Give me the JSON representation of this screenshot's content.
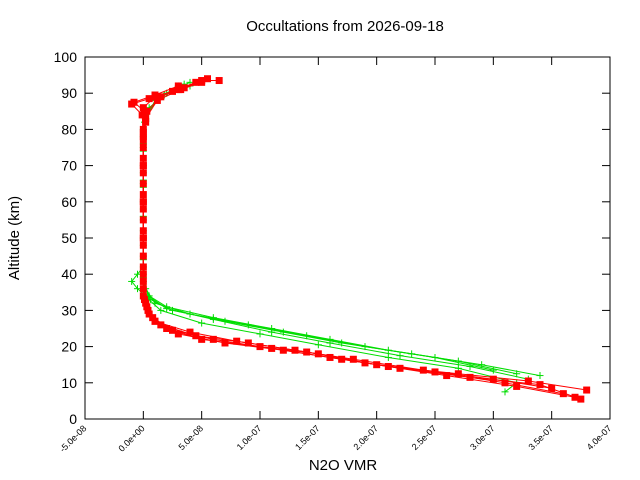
{
  "chart_data": {
    "type": "line",
    "title": "Occultations from 2026-09-18",
    "xlabel": "N2O VMR",
    "ylabel": "Altitude (km)",
    "xlim": [
      -5e-08,
      4e-07
    ],
    "ylim": [
      0,
      100
    ],
    "x_ticks": [
      -5e-08,
      0,
      5e-08,
      1e-07,
      1.5e-07,
      2e-07,
      2.5e-07,
      3e-07,
      3.5e-07,
      4e-07
    ],
    "x_tick_labels": [
      "-5.0e-08",
      "0.0e+00",
      "5.0e-08",
      "1.0e-07",
      "1.5e-07",
      "2.0e-07",
      "2.5e-07",
      "3.0e-07",
      "3.5e-07",
      "4.0e-07"
    ],
    "y_ticks": [
      0,
      10,
      20,
      30,
      40,
      50,
      60,
      70,
      80,
      90,
      100
    ],
    "y_tick_labels": [
      "0",
      "10",
      "20",
      "30",
      "40",
      "50",
      "60",
      "70",
      "80",
      "90",
      "100"
    ],
    "grid": false,
    "legend": "none",
    "series": [
      {
        "color": "#00dd00",
        "marker": "plus",
        "profiles": [
          [
            [
              3.2e-07,
              12.5
            ],
            [
              2.7e-07,
              16
            ],
            [
              2.1e-07,
              19
            ],
            [
              1.6e-07,
              22
            ],
            [
              1.1e-07,
              25
            ],
            [
              6e-08,
              28
            ],
            [
              2e-08,
              31
            ],
            [
              5e-09,
              34
            ],
            [
              0,
              38
            ],
            [
              0,
              45
            ],
            [
              0,
              55
            ],
            [
              0,
              65
            ],
            [
              0,
              75
            ],
            [
              1e-09,
              82
            ],
            [
              1e-08,
              88
            ],
            [
              3e-08,
              92
            ]
          ],
          [
            [
              3.4e-07,
              12
            ],
            [
              2.9e-07,
              15
            ],
            [
              2.3e-07,
              18
            ],
            [
              1.7e-07,
              21
            ],
            [
              1.2e-07,
              24
            ],
            [
              7e-08,
              27
            ],
            [
              2.5e-08,
              30
            ],
            [
              6e-09,
              33
            ],
            [
              -5e-09,
              36
            ],
            [
              -1e-08,
              38
            ],
            [
              -5e-09,
              40
            ],
            [
              0,
              42
            ],
            [
              0,
              50
            ],
            [
              0,
              60
            ],
            [
              0,
              70
            ],
            [
              0,
              80
            ],
            [
              5e-09,
              86
            ],
            [
              2e-08,
              90
            ],
            [
              4e-08,
              93
            ]
          ],
          [
            [
              3e-07,
              13.5
            ],
            [
              2.5e-07,
              17
            ],
            [
              1.9e-07,
              20
            ],
            [
              1.4e-07,
              23
            ],
            [
              9e-08,
              26
            ],
            [
              4e-08,
              29
            ],
            [
              1e-08,
              32
            ],
            [
              2e-09,
              36
            ],
            [
              0,
              44
            ],
            [
              0,
              56
            ],
            [
              0,
              66
            ],
            [
              0,
              76
            ],
            [
              2e-09,
              84
            ],
            [
              1.5e-08,
              89
            ],
            [
              3.5e-08,
              92.5
            ]
          ],
          [
            [
              3.3e-07,
              11
            ],
            [
              2.8e-07,
              14.5
            ],
            [
              2.2e-07,
              17.5
            ],
            [
              1.6e-07,
              21
            ],
            [
              1.1e-07,
              24
            ],
            [
              6e-08,
              27.5
            ],
            [
              2e-08,
              30.5
            ],
            [
              4e-09,
              34
            ],
            [
              0,
              40
            ],
            [
              0,
              48
            ],
            [
              0,
              58
            ],
            [
              0,
              68
            ],
            [
              0,
              78
            ],
            [
              3e-09,
              85
            ],
            [
              1.8e-08,
              89.5
            ],
            [
              4e-08,
              92
            ]
          ],
          [
            [
              3.1e-07,
              7.5
            ],
            [
              3.2e-07,
              10
            ],
            [
              2.7e-07,
              14
            ],
            [
              2.1e-07,
              17
            ],
            [
              1.5e-07,
              20.5
            ],
            [
              1e-07,
              23.5
            ],
            [
              5e-08,
              26.5
            ],
            [
              1.5e-08,
              30
            ],
            [
              3e-09,
              33.5
            ],
            [
              0,
              39
            ],
            [
              0,
              52
            ],
            [
              0,
              64
            ],
            [
              0,
              74
            ],
            [
              2e-09,
              83
            ],
            [
              1.2e-08,
              88.5
            ],
            [
              3e-08,
              91.5
            ]
          ]
        ]
      },
      {
        "color": "#ff0000",
        "marker": "square",
        "profiles": [
          [
            [
              3.7e-07,
              6
            ],
            [
              3.2e-07,
              9
            ],
            [
              2.6e-07,
              12
            ],
            [
              2e-07,
              15
            ],
            [
              1.5e-07,
              18
            ],
            [
              1e-07,
              20
            ],
            [
              5e-08,
              22
            ],
            [
              2e-08,
              25
            ],
            [
              5e-09,
              29
            ],
            [
              0,
              34
            ],
            [
              0,
              45
            ],
            [
              0,
              55
            ],
            [
              0,
              65
            ],
            [
              0,
              75
            ],
            [
              2e-09,
              82
            ],
            [
              0,
              86
            ],
            [
              1e-08,
              89
            ],
            [
              3e-08,
              91
            ],
            [
              5e-08,
              93.5
            ],
            [
              6.5e-08,
              93.5
            ]
          ],
          [
            [
              3.6e-07,
              7
            ],
            [
              3.1e-07,
              10
            ],
            [
              2.5e-07,
              13
            ],
            [
              1.9e-07,
              15.5
            ],
            [
              1.4e-07,
              18.5
            ],
            [
              9e-08,
              21
            ],
            [
              4.5e-08,
              23
            ],
            [
              1.5e-08,
              26
            ],
            [
              4e-09,
              30
            ],
            [
              0,
              36
            ],
            [
              0,
              48
            ],
            [
              0,
              58
            ],
            [
              0,
              68
            ],
            [
              0,
              78
            ],
            [
              -1e-09,
              84
            ],
            [
              -1e-08,
              87
            ],
            [
              5e-09,
              88.5
            ],
            [
              2.5e-08,
              90.5
            ],
            [
              4.5e-08,
              93
            ]
          ],
          [
            [
              3.8e-07,
              8
            ],
            [
              3.3e-07,
              10.5
            ],
            [
              2.7e-07,
              12.5
            ],
            [
              2.1e-07,
              14.5
            ],
            [
              1.6e-07,
              17
            ],
            [
              1.1e-07,
              19.5
            ],
            [
              6e-08,
              22
            ],
            [
              2.5e-08,
              24.5
            ],
            [
              8e-09,
              28
            ],
            [
              1e-09,
              33
            ],
            [
              0,
              42
            ],
            [
              0,
              52
            ],
            [
              0,
              62
            ],
            [
              0,
              72
            ],
            [
              0,
              80
            ],
            [
              3e-09,
              85
            ],
            [
              1.5e-08,
              89
            ],
            [
              3.5e-08,
              91.5
            ],
            [
              5.5e-08,
              94
            ]
          ],
          [
            [
              3.5e-07,
              8.5
            ],
            [
              3e-07,
              11
            ],
            [
              2.4e-07,
              13.5
            ],
            [
              1.8e-07,
              16.5
            ],
            [
              1.3e-07,
              19
            ],
            [
              8e-08,
              21.5
            ],
            [
              4e-08,
              24
            ],
            [
              1e-08,
              27
            ],
            [
              3e-09,
              31
            ],
            [
              0,
              38
            ],
            [
              0,
              50
            ],
            [
              0,
              60
            ],
            [
              0,
              70
            ],
            [
              0,
              79
            ],
            [
              1e-09,
              85
            ],
            [
              -8e-09,
              87.5
            ],
            [
              1e-08,
              89.5
            ],
            [
              3e-08,
              92
            ]
          ],
          [
            [
              3.75e-07,
              5.5
            ],
            [
              3.4e-07,
              9.5
            ],
            [
              2.8e-07,
              11.5
            ],
            [
              2.2e-07,
              14
            ],
            [
              1.7e-07,
              16.5
            ],
            [
              1.2e-07,
              19
            ],
            [
              7e-08,
              21
            ],
            [
              3e-08,
              23.5
            ],
            [
              1e-08,
              27
            ],
            [
              2e-09,
              32
            ],
            [
              0,
              40
            ],
            [
              0,
              50
            ],
            [
              0,
              60
            ],
            [
              0,
              70
            ],
            [
              0,
              77
            ],
            [
              2e-09,
              83
            ],
            [
              1.2e-08,
              88
            ],
            [
              3.2e-08,
              91
            ],
            [
              5e-08,
              93
            ]
          ]
        ]
      }
    ]
  }
}
